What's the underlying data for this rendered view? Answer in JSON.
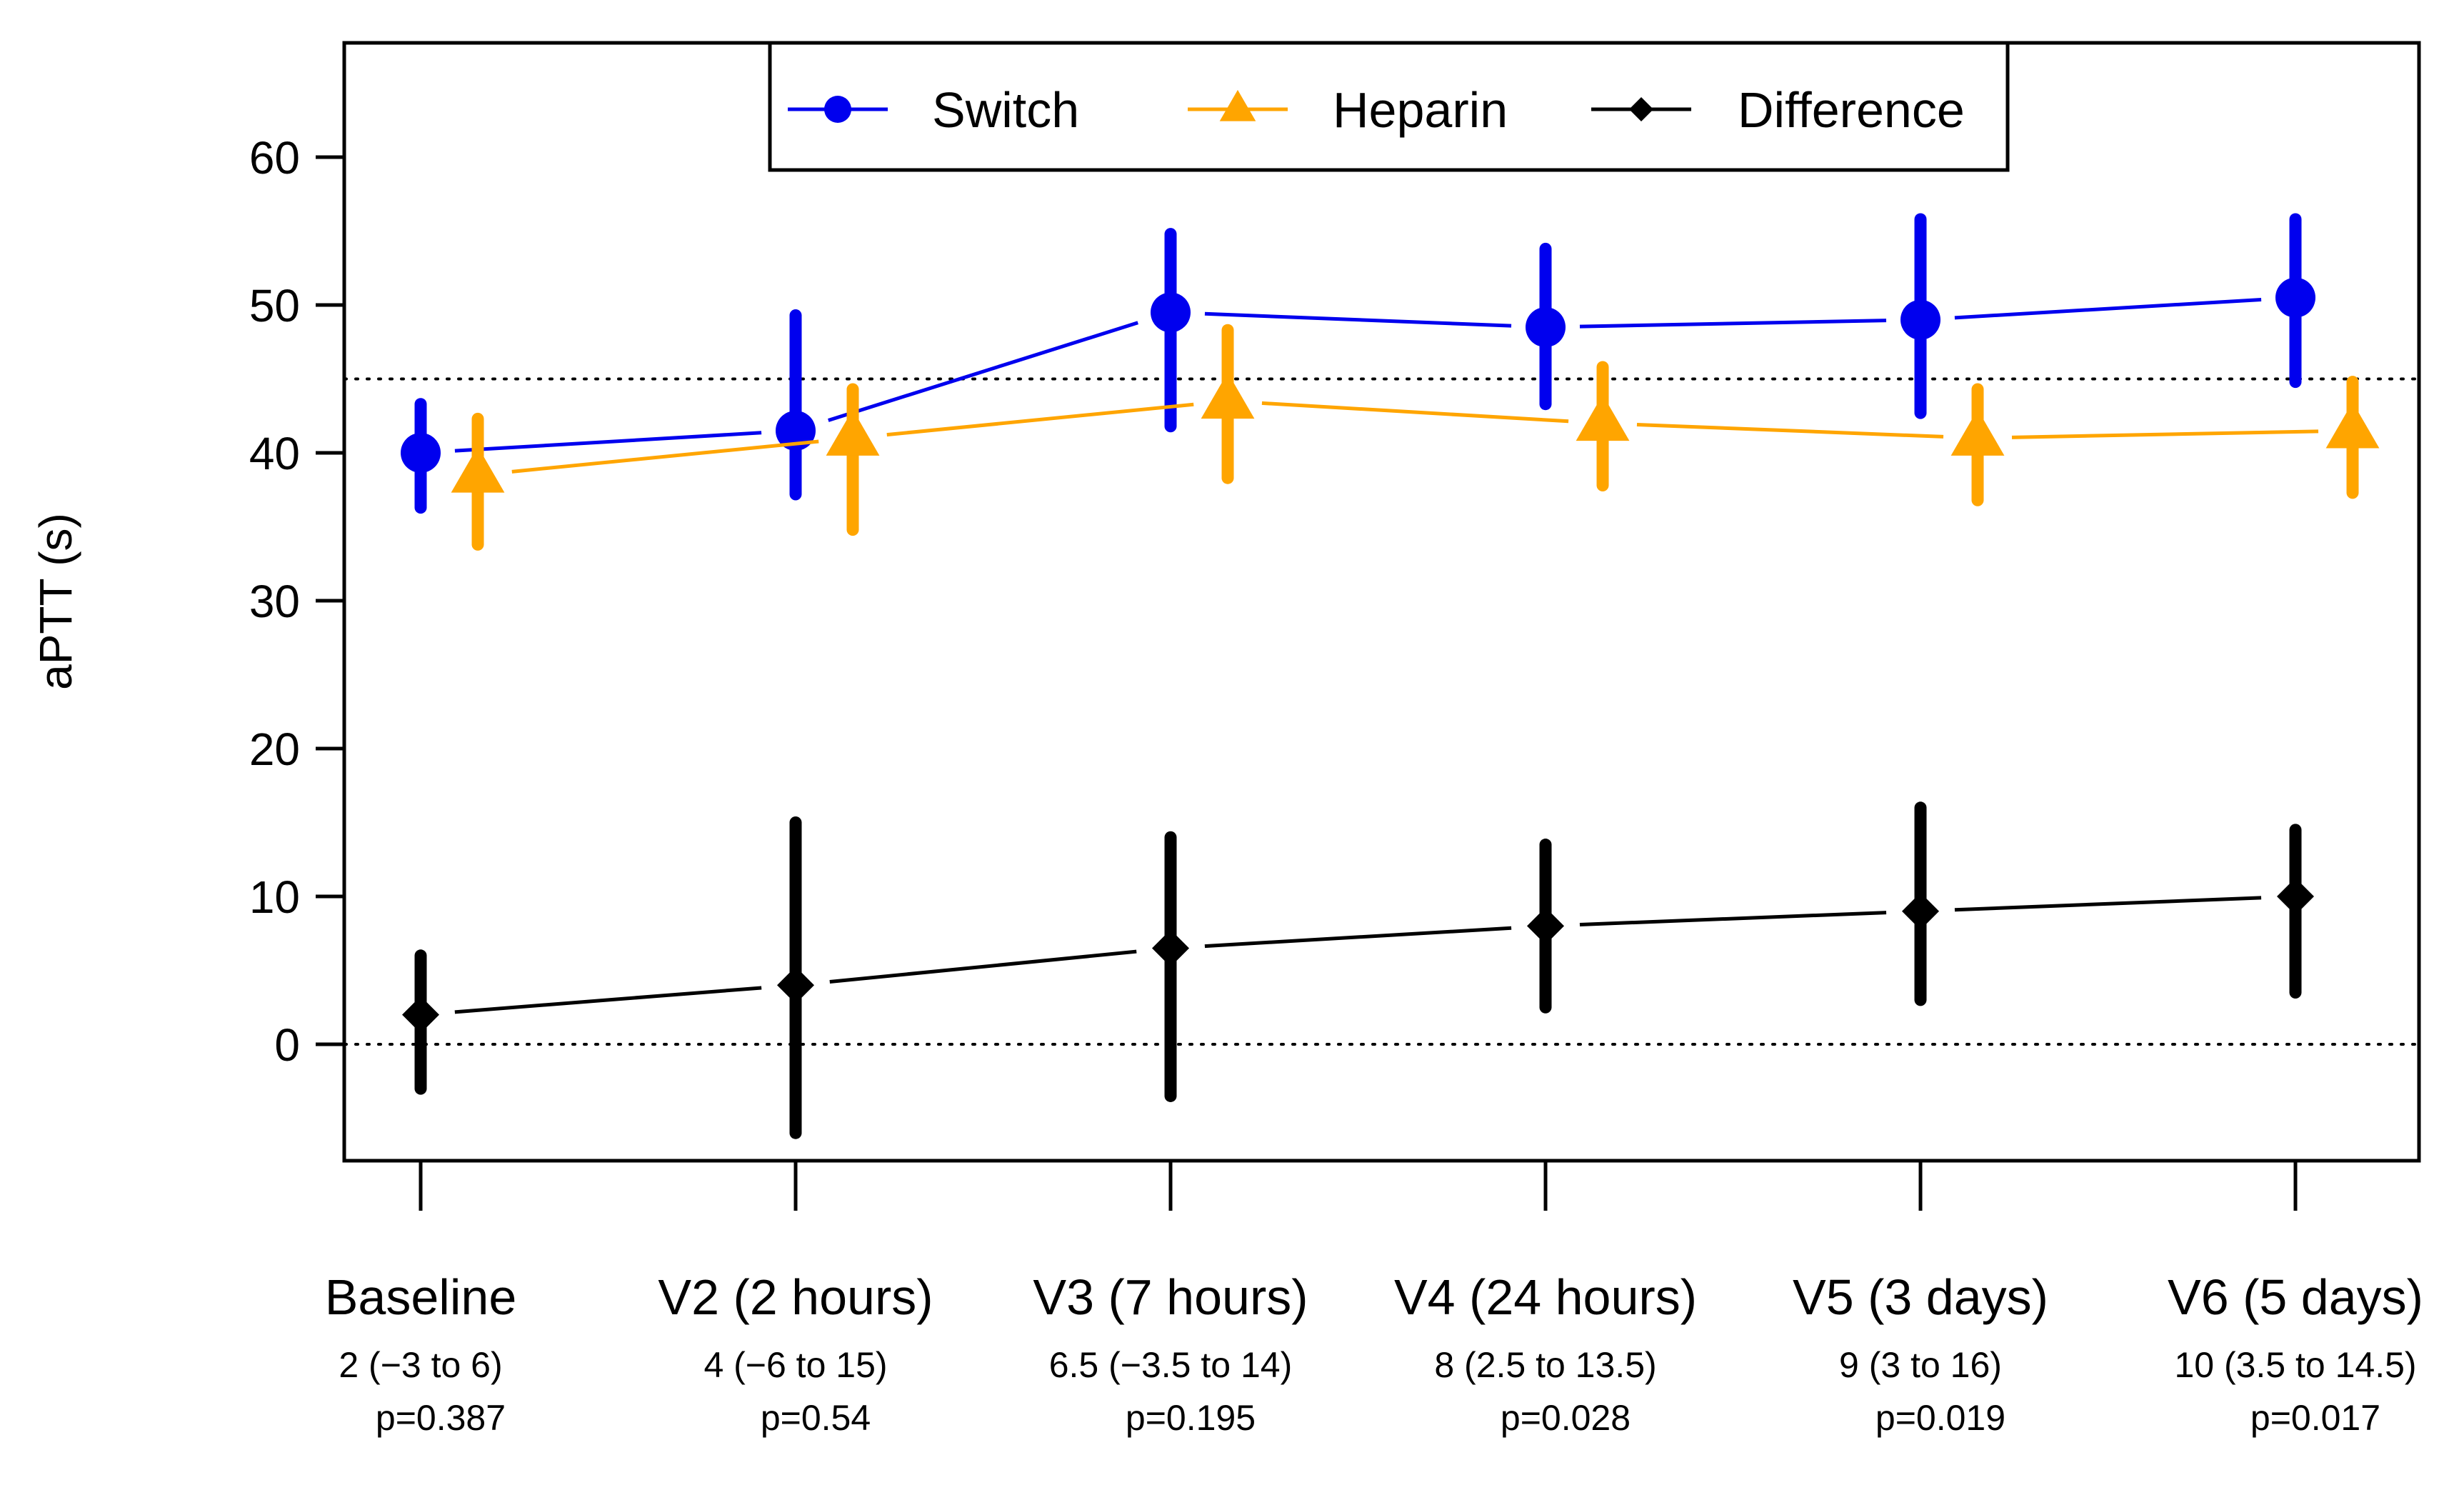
{
  "chart_data": {
    "type": "line",
    "title": "",
    "xlabel": "",
    "ylabel": "aPTT (s)",
    "ylim": [
      -7.5,
      67
    ],
    "yticks": [
      0,
      10,
      20,
      30,
      40,
      50,
      60
    ],
    "grid": false,
    "legend_position": "top-center",
    "reference_lines": [
      45,
      0
    ],
    "categories": [
      "Baseline",
      "V2 (2 hours)",
      "V3 (7 hours)",
      "V4 (24 hours)",
      "V5 (3 days)",
      "V6 (5 days)"
    ],
    "category_stats": [
      "2 (−3 to 6)",
      "4 (−6 to 15)",
      "6.5 (−3.5 to 14)",
      "8 (2.5 to 13.5)",
      "9 (3 to 16)",
      "10 (3.5 to 14.5)"
    ],
    "p_values": [
      "p=0.387",
      "p=0.54",
      "p=0.195",
      "p=0.028",
      "p=0.019",
      "p=0.017"
    ],
    "series": [
      {
        "name": "Switch",
        "marker": "circle",
        "color": "#0000ee",
        "values": [
          40,
          41.5,
          49.5,
          48.5,
          49,
          50.5
        ],
        "lower": [
          36.3,
          37.2,
          41.8,
          43.3,
          42.7,
          44.8
        ],
        "upper": [
          43.3,
          49.3,
          54.8,
          53.8,
          55.8,
          55.8
        ]
      },
      {
        "name": "Heparin",
        "marker": "triangle",
        "color": "#ffa500",
        "values": [
          38.5,
          41,
          43.5,
          42,
          41,
          41.5
        ],
        "lower": [
          33.8,
          34.8,
          38.3,
          37.8,
          36.8,
          37.3
        ],
        "upper": [
          42.3,
          44.3,
          48.3,
          45.8,
          44.3,
          44.8
        ]
      },
      {
        "name": "Difference",
        "marker": "diamond",
        "color": "#000000",
        "values": [
          2,
          4,
          6.5,
          8,
          9,
          10
        ],
        "lower": [
          -3,
          -6,
          -3.5,
          2.5,
          3,
          3.5
        ],
        "upper": [
          6,
          15,
          14,
          13.5,
          16,
          14.5
        ]
      }
    ]
  }
}
